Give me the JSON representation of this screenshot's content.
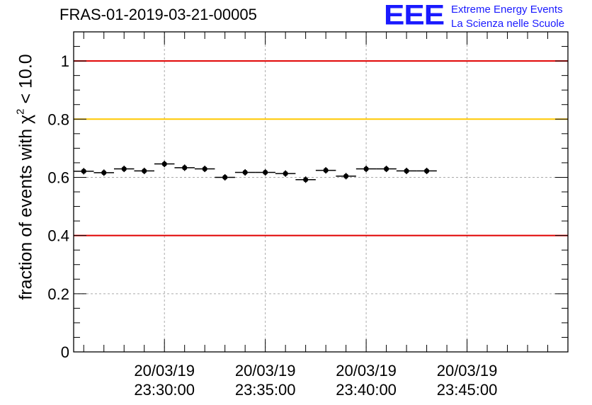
{
  "title": "FRAS-01-2019-03-21-00005",
  "logo": {
    "mark": "EEE",
    "line1": "Extreme Energy Events",
    "line2": "La Scienza nelle Scuole"
  },
  "colors": {
    "red_line": "#e00000",
    "yellow_line": "#ffc800",
    "grid": "#aaaaaa",
    "logo": "#1a1aff"
  },
  "chart_data": {
    "type": "scatter",
    "title": "FRAS-01-2019-03-21-00005",
    "ylabel_prefix": "fraction of events with ",
    "ylabel_symbol": "χ",
    "ylabel_sup": "2",
    "ylabel_suffix": " < 10.0",
    "xlabel": "",
    "ylim": [
      0,
      1.1
    ],
    "y_ticks": [
      "0",
      "0.2",
      "0.4",
      "0.6",
      "0.8",
      "1"
    ],
    "y_tick_values": [
      0,
      0.2,
      0.4,
      0.6,
      0.8,
      1.0
    ],
    "x_range_minutes": [
      -24.5,
      0
    ],
    "x_ticks": [
      {
        "minute": -20,
        "date": "20/03/19",
        "time": "23:30:00"
      },
      {
        "minute": -15,
        "date": "20/03/19",
        "time": "23:35:00"
      },
      {
        "minute": -10,
        "date": "20/03/19",
        "time": "23:40:00"
      },
      {
        "minute": -5,
        "date": "20/03/19",
        "time": "23:45:00"
      }
    ],
    "bin_width_minutes": 1,
    "bin_centers_minutes": [
      -24,
      -23,
      -22,
      -21,
      -20,
      -19,
      -18,
      -17,
      -16,
      -15,
      -14,
      -13,
      -12,
      -11,
      -10,
      -9,
      -8,
      -7
    ],
    "values": [
      0.621,
      0.616,
      0.629,
      0.622,
      0.646,
      0.633,
      0.629,
      0.6,
      0.617,
      0.617,
      0.613,
      0.592,
      0.624,
      0.604,
      0.629,
      0.629,
      0.622,
      0.622
    ],
    "errors": [
      0.011,
      0.011,
      0.011,
      0.011,
      0.011,
      0.011,
      0.011,
      0.011,
      0.011,
      0.011,
      0.011,
      0.011,
      0.011,
      0.011,
      0.011,
      0.011,
      0.011,
      0.011
    ],
    "reference_lines": [
      {
        "y": 1.0,
        "color": "#e00000"
      },
      {
        "y": 0.8,
        "color": "#ffc800"
      },
      {
        "y": 0.4,
        "color": "#e00000"
      }
    ],
    "grid": true
  }
}
